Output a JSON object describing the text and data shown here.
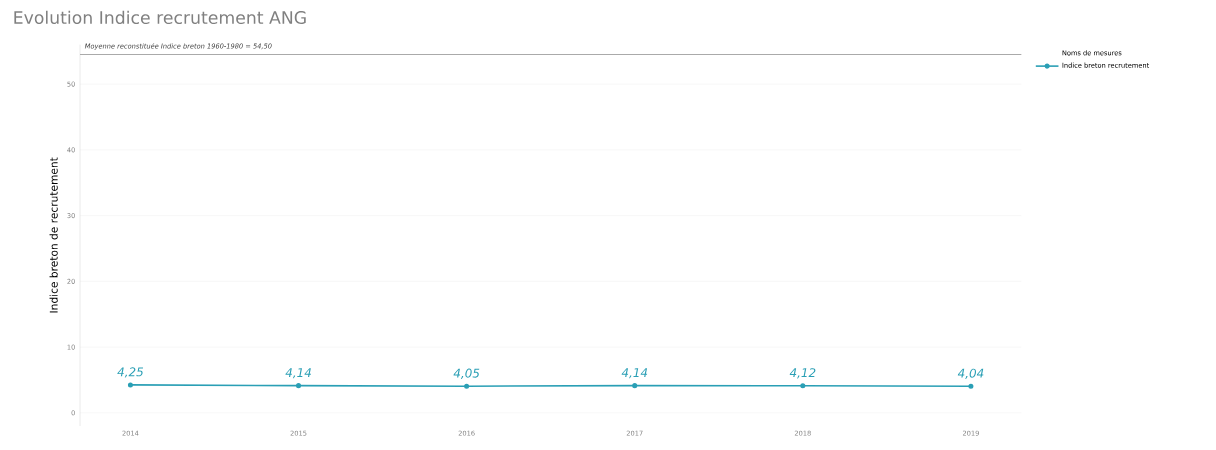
{
  "chart_data": {
    "type": "line",
    "title": "Evolution Indice recrutement ANG",
    "ylabel": "Indice breton de recrutement",
    "legend_title": "Noms de mesures",
    "categories": [
      "2014",
      "2015",
      "2016",
      "2017",
      "2018",
      "2019"
    ],
    "series": [
      {
        "name": "Indice breton recrutement",
        "color": "#2a9fb5",
        "values": [
          4.25,
          4.14,
          4.05,
          4.14,
          4.12,
          4.04
        ],
        "value_labels": [
          "4,25",
          "4,14",
          "4,05",
          "4,14",
          "4,12",
          "4,04"
        ]
      }
    ],
    "ylim": [
      -2,
      56
    ],
    "yticks": [
      0,
      10,
      20,
      30,
      40,
      50
    ],
    "grid": "y",
    "legend": "top right",
    "marker": "circle",
    "line_style": "solid",
    "ref_lines": [
      {
        "axis": "y",
        "value": 54.5,
        "label": "Moyenne reconstituée Indice breton 1960-1980 = 54,50",
        "color": "#aaaaaa"
      }
    ]
  }
}
